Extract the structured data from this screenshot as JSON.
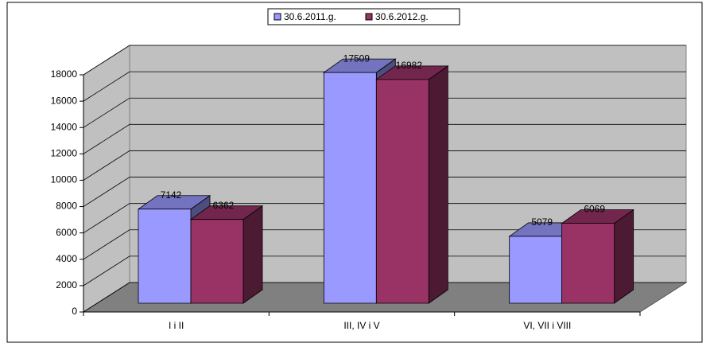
{
  "chart_data": {
    "type": "bar3d",
    "categories": [
      "I i II",
      "III, IV i V",
      "VI, VII i VIII"
    ],
    "series": [
      {
        "name": "30.6.2011.g.",
        "color": "#9999ff",
        "values": [
          7142,
          17509,
          5079
        ]
      },
      {
        "name": "30.6.2012.g.",
        "color": "#993366",
        "values": [
          6362,
          16982,
          6069
        ]
      }
    ],
    "ylim": [
      0,
      18000
    ],
    "yticks": [
      0,
      2000,
      4000,
      6000,
      8000,
      10000,
      12000,
      14000,
      16000,
      18000
    ],
    "grid": true,
    "legend": "top"
  }
}
